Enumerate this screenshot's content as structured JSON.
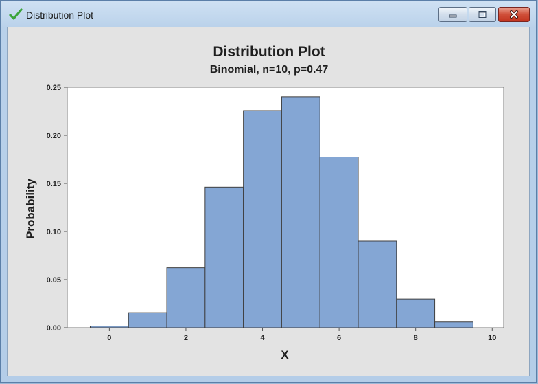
{
  "window": {
    "title": "Distribution Plot",
    "buttons": [
      "minimize-icon",
      "maximize-icon",
      "close-icon"
    ],
    "app_icon": "checkmark-icon"
  },
  "colors": {
    "bar_fill": "#84a6d4",
    "bar_stroke": "#3f3f3f",
    "plot_background": "#ffffff",
    "panel_background": "#e3e3e3",
    "check_green": "#3aa43a"
  },
  "chart_data": {
    "type": "bar",
    "title": "Distribution Plot",
    "subtitle": "Binomial, n=10, p=0.47",
    "xlabel": "X",
    "ylabel": "Probability",
    "x": [
      0,
      1,
      2,
      3,
      4,
      5,
      6,
      7,
      8,
      9
    ],
    "values": [
      0.0017,
      0.0156,
      0.0624,
      0.1462,
      0.2257,
      0.2401,
      0.1775,
      0.09,
      0.0299,
      0.0059
    ],
    "xlim": [
      -1.1,
      10.3
    ],
    "ylim": [
      0,
      0.25
    ],
    "xticks": [
      "0",
      "2",
      "4",
      "6",
      "8",
      "10"
    ],
    "yticks": [
      "0.00",
      "0.05",
      "0.10",
      "0.15",
      "0.20",
      "0.25"
    ],
    "grid": false,
    "legend": "none"
  }
}
